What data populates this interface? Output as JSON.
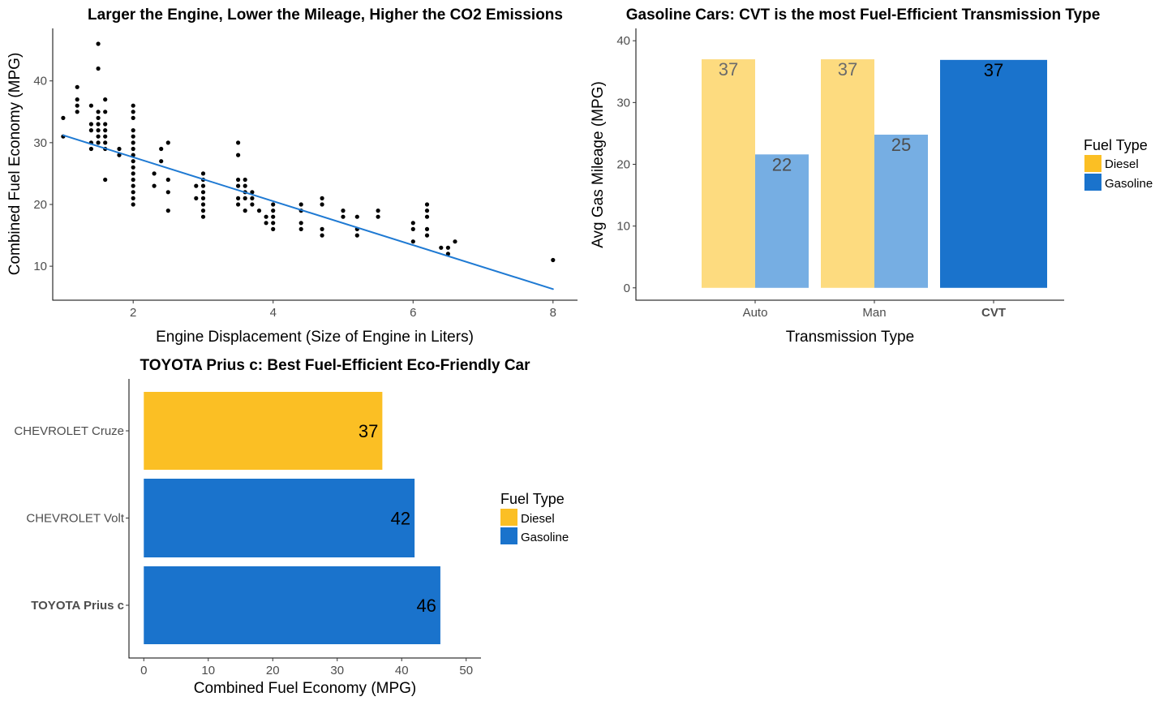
{
  "colors": {
    "diesel": "#fbbf24",
    "gasoline": "#1a73cc",
    "diesel_faded": "#fddb7f",
    "gasoline_faded": "#76aee3",
    "line": "#1f7ad3"
  },
  "chart_data": [
    {
      "type": "scatter",
      "title": "Larger the Engine, Lower the Mileage, Higher the CO2 Emissions",
      "xlabel": "Engine Displacement (Size of Engine in Liters)",
      "ylabel": "Combined Fuel Economy (MPG)",
      "xticks": [
        2,
        4,
        6,
        8
      ],
      "yticks": [
        10,
        20,
        30,
        40
      ],
      "xlim": [
        0.85,
        8.35
      ],
      "ylim": [
        4.5,
        48.5
      ],
      "trendline": {
        "x": [
          1.0,
          8.0
        ],
        "y": [
          31.2,
          6.3
        ]
      },
      "points": [
        [
          1.0,
          34
        ],
        [
          1.0,
          31
        ],
        [
          1.2,
          39
        ],
        [
          1.2,
          37
        ],
        [
          1.2,
          36
        ],
        [
          1.2,
          35
        ],
        [
          1.4,
          36
        ],
        [
          1.4,
          33
        ],
        [
          1.4,
          32
        ],
        [
          1.4,
          30
        ],
        [
          1.4,
          29
        ],
        [
          1.5,
          46
        ],
        [
          1.5,
          42
        ],
        [
          1.5,
          35
        ],
        [
          1.5,
          34
        ],
        [
          1.5,
          33
        ],
        [
          1.5,
          32
        ],
        [
          1.5,
          31
        ],
        [
          1.5,
          30
        ],
        [
          1.6,
          37
        ],
        [
          1.6,
          35
        ],
        [
          1.6,
          33
        ],
        [
          1.6,
          32
        ],
        [
          1.6,
          31
        ],
        [
          1.6,
          30
        ],
        [
          1.6,
          29
        ],
        [
          1.6,
          24
        ],
        [
          1.8,
          29
        ],
        [
          1.8,
          28
        ],
        [
          2.0,
          36
        ],
        [
          2.0,
          35
        ],
        [
          2.0,
          34
        ],
        [
          2.0,
          32
        ],
        [
          2.0,
          31
        ],
        [
          2.0,
          30
        ],
        [
          2.0,
          29
        ],
        [
          2.0,
          28
        ],
        [
          2.0,
          27
        ],
        [
          2.0,
          26
        ],
        [
          2.0,
          25
        ],
        [
          2.0,
          24
        ],
        [
          2.0,
          23
        ],
        [
          2.0,
          22
        ],
        [
          2.0,
          21
        ],
        [
          2.0,
          20
        ],
        [
          2.3,
          25
        ],
        [
          2.3,
          23
        ],
        [
          2.4,
          29
        ],
        [
          2.4,
          27
        ],
        [
          2.5,
          30
        ],
        [
          2.5,
          24
        ],
        [
          2.5,
          22
        ],
        [
          2.5,
          19
        ],
        [
          2.9,
          23
        ],
        [
          2.9,
          21
        ],
        [
          3.0,
          25
        ],
        [
          3.0,
          24
        ],
        [
          3.0,
          23
        ],
        [
          3.0,
          22
        ],
        [
          3.0,
          21
        ],
        [
          3.0,
          20
        ],
        [
          3.0,
          19
        ],
        [
          3.0,
          18
        ],
        [
          3.5,
          30
        ],
        [
          3.5,
          28
        ],
        [
          3.5,
          24
        ],
        [
          3.5,
          23
        ],
        [
          3.5,
          21
        ],
        [
          3.5,
          20
        ],
        [
          3.6,
          24
        ],
        [
          3.6,
          23
        ],
        [
          3.6,
          22
        ],
        [
          3.6,
          21
        ],
        [
          3.6,
          19
        ],
        [
          3.7,
          22
        ],
        [
          3.7,
          21
        ],
        [
          3.7,
          20
        ],
        [
          3.8,
          19
        ],
        [
          3.9,
          18
        ],
        [
          3.9,
          17
        ],
        [
          4.0,
          20
        ],
        [
          4.0,
          19
        ],
        [
          4.0,
          18
        ],
        [
          4.0,
          17
        ],
        [
          4.0,
          16
        ],
        [
          4.4,
          20
        ],
        [
          4.4,
          19
        ],
        [
          4.4,
          17
        ],
        [
          4.4,
          16
        ],
        [
          4.7,
          21
        ],
        [
          4.7,
          20
        ],
        [
          4.7,
          16
        ],
        [
          4.7,
          15
        ],
        [
          5.0,
          19
        ],
        [
          5.0,
          18
        ],
        [
          5.2,
          18
        ],
        [
          5.2,
          16
        ],
        [
          5.2,
          15
        ],
        [
          5.5,
          19
        ],
        [
          5.5,
          18
        ],
        [
          6.0,
          17
        ],
        [
          6.0,
          16
        ],
        [
          6.0,
          14
        ],
        [
          6.2,
          20
        ],
        [
          6.2,
          19
        ],
        [
          6.2,
          18
        ],
        [
          6.2,
          16
        ],
        [
          6.2,
          15
        ],
        [
          6.4,
          13
        ],
        [
          6.5,
          13
        ],
        [
          6.5,
          12
        ],
        [
          6.6,
          14
        ],
        [
          8.0,
          11
        ]
      ]
    },
    {
      "type": "bar",
      "title": "Gasoline Cars: CVT is the most Fuel-Efficient Transmission Type",
      "xlabel": "Transmission Type",
      "ylabel": "Avg Gas Mileage (MPG)",
      "categories": [
        "Auto",
        "Man",
        "CVT"
      ],
      "yticks": [
        0,
        10,
        20,
        30,
        40
      ],
      "ylim": [
        -2,
        42
      ],
      "series": [
        {
          "name": "Diesel",
          "values": [
            37,
            37,
            null
          ]
        },
        {
          "name": "Gasoline",
          "values": [
            22,
            25,
            37
          ]
        }
      ],
      "bar_values_exact": {
        "diesel": [
          37,
          37
        ],
        "gasoline": [
          21.6,
          24.8,
          36.9
        ]
      },
      "data_labels": {
        "diesel": [
          "37",
          "37"
        ],
        "gasoline": [
          "22",
          "25",
          "37"
        ]
      },
      "highlight_category": "CVT",
      "legend": {
        "title": "Fuel Type",
        "items": [
          "Diesel",
          "Gasoline"
        ],
        "position": "right"
      }
    },
    {
      "type": "bar",
      "orientation": "horizontal",
      "title": "TOYOTA Prius c: Best Fuel-Efficient Eco-Friendly Car",
      "xlabel": "Combined Fuel Economy (MPG)",
      "ylabel": "",
      "categories": [
        "CHEVROLET Cruze",
        "CHEVROLET Volt",
        "TOYOTA Prius c"
      ],
      "values": [
        37,
        42,
        46
      ],
      "fuel": [
        "Diesel",
        "Gasoline",
        "Gasoline"
      ],
      "data_labels": [
        "37",
        "42",
        "46"
      ],
      "xticks": [
        0,
        10,
        20,
        30,
        40,
        50
      ],
      "xlim": [
        -2.3,
        52.3
      ],
      "highlight_category": "TOYOTA Prius c",
      "legend": {
        "title": "Fuel Type",
        "items": [
          "Diesel",
          "Gasoline"
        ],
        "position": "right"
      }
    }
  ]
}
